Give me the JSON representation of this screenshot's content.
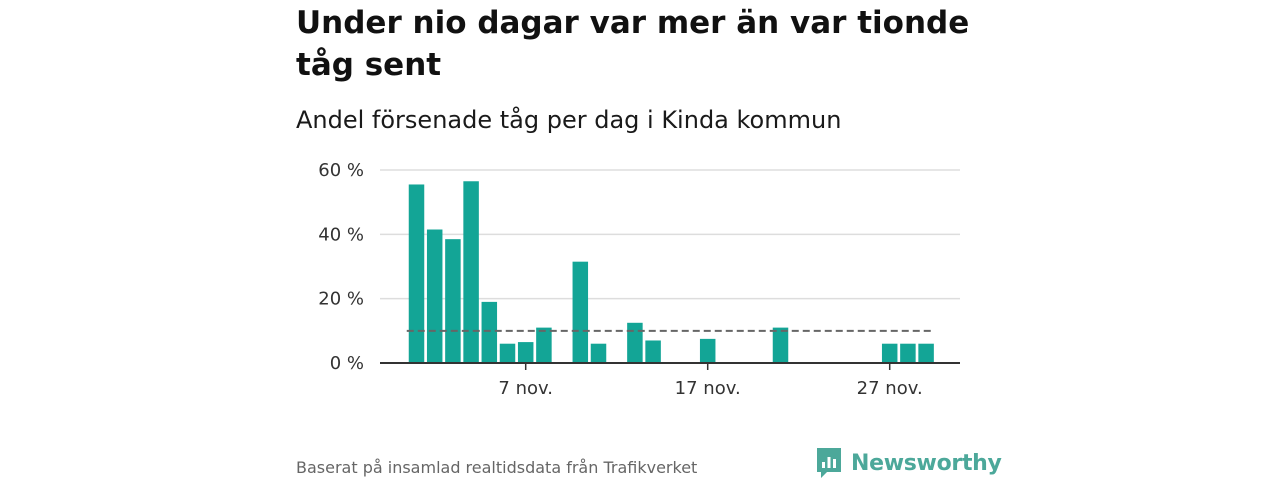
{
  "title": "Under nio dagar var mer än var tionde tåg sent",
  "subtitle": "Andel försenade tåg per dag i Kinda kommun",
  "source": "Baserat på insamlad realtidsdata från Trafikverket",
  "brand": "Newsworthy",
  "colors": {
    "bar": "#13a596",
    "reference": "#666666",
    "grid": "#dddddd",
    "axis": "#333333",
    "brand": "#4ca89a"
  },
  "chart_data": {
    "type": "bar",
    "title": "Under nio dagar var mer än var tionde tåg sent",
    "subtitle": "Andel försenade tåg per dag i Kinda kommun",
    "x": [
      "2023-11-01",
      "2023-11-02",
      "2023-11-03",
      "2023-11-04",
      "2023-11-05",
      "2023-11-06",
      "2023-11-07",
      "2023-11-08",
      "2023-11-09",
      "2023-11-10",
      "2023-11-11",
      "2023-11-12",
      "2023-11-13",
      "2023-11-14",
      "2023-11-15",
      "2023-11-16",
      "2023-11-17",
      "2023-11-18",
      "2023-11-19",
      "2023-11-20",
      "2023-11-21",
      "2023-11-22",
      "2023-11-23",
      "2023-11-24",
      "2023-11-25",
      "2023-11-26",
      "2023-11-27",
      "2023-11-28",
      "2023-11-29"
    ],
    "values": [
      55.5,
      41.5,
      38.5,
      56.5,
      19,
      6,
      6.5,
      11,
      null,
      31.5,
      6,
      null,
      12.5,
      7,
      null,
      null,
      7.5,
      null,
      null,
      null,
      11,
      null,
      null,
      null,
      null,
      null,
      6,
      6,
      6
    ],
    "reference_line": {
      "value": 10,
      "style": "dashed"
    },
    "y_ticks": [
      0,
      20,
      40,
      60
    ],
    "y_tick_labels": [
      "0 %",
      "20 %",
      "40 %",
      "60 %"
    ],
    "x_tick_dates": [
      "2023-11-07",
      "2023-11-17",
      "2023-11-27"
    ],
    "x_tick_labels": [
      "7 nov.",
      "17 nov.",
      "27 nov."
    ],
    "ylim": [
      0,
      60
    ],
    "xlabel": "",
    "ylabel": "",
    "grid": true,
    "legend": "none"
  }
}
